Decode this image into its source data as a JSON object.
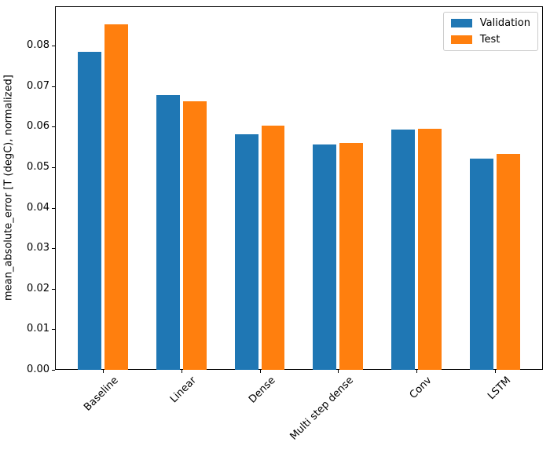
{
  "figure": {
    "background": "#ffffff"
  },
  "chart_data": {
    "type": "bar",
    "title": "",
    "xlabel": "",
    "ylabel": "mean_absolute_error [T (degC), normalized]",
    "categories": [
      "Baseline",
      "Linear",
      "Dense",
      "Multi step dense",
      "Conv",
      "LSTM"
    ],
    "series": [
      {
        "name": "Validation",
        "color": "#1f77b4",
        "values": [
          0.0785,
          0.0678,
          0.0582,
          0.0557,
          0.0593,
          0.0521
        ]
      },
      {
        "name": "Test",
        "color": "#ff7f0e",
        "values": [
          0.0852,
          0.0663,
          0.0603,
          0.056,
          0.0595,
          0.0532
        ]
      }
    ],
    "ylim": [
      0,
      0.0897
    ],
    "ytick_labels": [
      "0.00",
      "0.01",
      "0.02",
      "0.03",
      "0.04",
      "0.05",
      "0.06",
      "0.07",
      "0.08"
    ],
    "grid": false,
    "legend_position": "upper right",
    "bar_width": 0.3,
    "bar_group_offset": 0.17,
    "xtick_rotation_deg": 45
  }
}
